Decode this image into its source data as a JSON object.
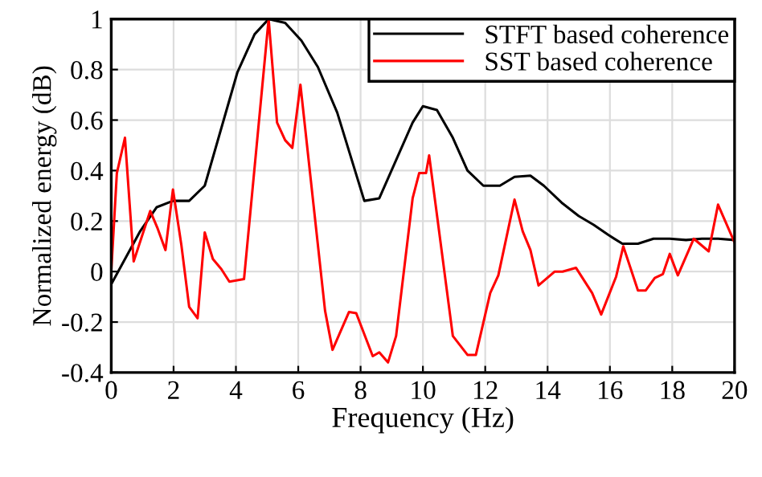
{
  "chart_data": {
    "type": "line",
    "xlabel": "Frequency (Hz)",
    "ylabel": "Normalized energy (dB)",
    "xlim": [
      0,
      20
    ],
    "ylim": [
      -0.4,
      1
    ],
    "xticks": [
      0,
      2,
      4,
      6,
      8,
      10,
      12,
      14,
      16,
      18,
      20
    ],
    "yticks": [
      -0.4,
      -0.2,
      0,
      0.2,
      0.4,
      0.6,
      0.8,
      1
    ],
    "grid": true,
    "legend": "top right",
    "marker": "none",
    "line_style": "solid",
    "series": [
      {
        "name": "STFT based coherence",
        "color": "#000000",
        "x": [
          0,
          0.93,
          1.46,
          1.98,
          2.5,
          3.0,
          4.05,
          4.6,
          5.05,
          5.58,
          6.1,
          6.63,
          7.25,
          8.12,
          8.6,
          9.67,
          10.0,
          10.45,
          10.96,
          11.43,
          11.94,
          12.47,
          12.94,
          13.45,
          13.88,
          14.48,
          15.0,
          15.48,
          15.95,
          16.4,
          16.9,
          17.4,
          17.92,
          18.44,
          18.95,
          19.47,
          20
        ],
        "values": [
          -0.05,
          0.16,
          0.255,
          0.28,
          0.28,
          0.34,
          0.79,
          0.94,
          1.0,
          0.985,
          0.915,
          0.81,
          0.63,
          0.28,
          0.29,
          0.59,
          0.655,
          0.64,
          0.53,
          0.4,
          0.34,
          0.34,
          0.375,
          0.38,
          0.34,
          0.27,
          0.22,
          0.185,
          0.145,
          0.11,
          0.11,
          0.13,
          0.13,
          0.125,
          0.13,
          0.13,
          0.125
        ]
      },
      {
        "name": "SST based coherence",
        "color": "#ff0000",
        "x": [
          0,
          0.18,
          0.44,
          0.72,
          1.25,
          1.49,
          1.74,
          1.98,
          2.25,
          2.5,
          2.77,
          3.0,
          3.26,
          3.53,
          3.79,
          4.26,
          5.05,
          5.32,
          5.58,
          5.81,
          6.07,
          6.86,
          7.1,
          7.63,
          7.86,
          8.39,
          8.6,
          8.88,
          9.14,
          9.67,
          9.88,
          10.1,
          10.2,
          10.96,
          11.43,
          11.7,
          12.16,
          12.42,
          12.94,
          13.2,
          13.45,
          13.71,
          14.23,
          14.48,
          14.91,
          15.43,
          15.72,
          16.2,
          16.43,
          16.9,
          17.15,
          17.44,
          17.7,
          17.92,
          18.18,
          18.69,
          19.17,
          19.47,
          20
        ],
        "values": [
          0,
          0.39,
          0.53,
          0.04,
          0.24,
          0.17,
          0.085,
          0.325,
          0.105,
          -0.14,
          -0.185,
          0.155,
          0.05,
          0.01,
          -0.04,
          -0.03,
          1.0,
          0.59,
          0.52,
          0.49,
          0.74,
          -0.155,
          -0.31,
          -0.16,
          -0.165,
          -0.335,
          -0.32,
          -0.36,
          -0.255,
          0.29,
          0.39,
          0.39,
          0.46,
          -0.255,
          -0.33,
          -0.33,
          -0.085,
          -0.015,
          0.285,
          0.16,
          0.085,
          -0.055,
          0,
          0,
          0.015,
          -0.085,
          -0.17,
          -0.02,
          0.1,
          -0.075,
          -0.075,
          -0.025,
          -0.01,
          0.07,
          -0.015,
          0.13,
          0.08,
          0.265,
          0.115
        ]
      }
    ]
  }
}
